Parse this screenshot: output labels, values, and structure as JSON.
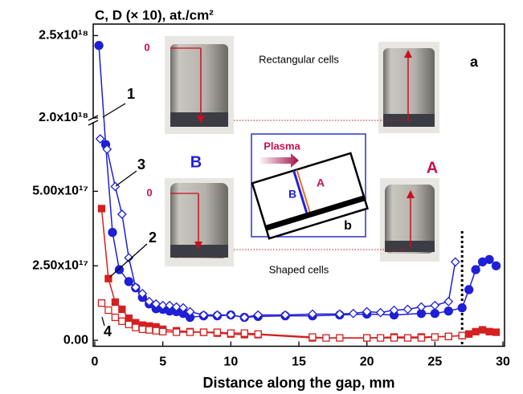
{
  "chart_data": {
    "type": "line",
    "title": "C, D (× 10), at./cm²",
    "x_label": "Distance along the gap, mm",
    "xlim": [
      0,
      30
    ],
    "xticks": [
      0,
      5,
      10,
      15,
      20,
      25,
      30
    ],
    "ylim": [
      -2e+16,
      2.57e+18
    ],
    "y_break": [
      7.3e+17,
      2e+18
    ],
    "yticks": [
      {
        "value": 0,
        "label": "0.00"
      },
      {
        "value": 2.5e+17,
        "label": "2.50x10¹⁷"
      },
      {
        "value": 5e+17,
        "label": "5.00x10¹⁷"
      },
      {
        "value": 2e+18,
        "label": "2.0x10¹⁸"
      },
      {
        "value": 2.5e+18,
        "label": "2.5x10¹⁸"
      }
    ],
    "vline_x": 27,
    "series": [
      {
        "name": "1",
        "color": "#1f1fd6",
        "marker": "circle",
        "filled": true,
        "x": [
          0.3,
          0.8,
          1.3,
          1.8,
          2.5,
          3,
          3.5,
          4,
          4.5,
          5,
          5.5,
          6,
          6.5,
          7,
          8,
          9,
          10,
          11,
          12,
          14,
          16,
          18,
          20,
          22,
          24,
          25,
          26,
          27,
          27.5,
          28,
          28.5,
          29,
          29.5
        ],
        "values": [
          2.44e+18,
          6.57e+17,
          3.62e+17,
          2.37e+17,
          1.97e+17,
          1.76e+17,
          1.44e+17,
          1.22e+17,
          1.06e+17,
          1.04e+17,
          9.8e+16,
          9.6e+16,
          9e+16,
          7.7e+16,
          8.2e+16,
          8.2e+16,
          8.5e+16,
          7.7e+16,
          8e+16,
          8.2e+16,
          8.2e+16,
          8.5e+16,
          8.8e+16,
          8.5e+16,
          9e+16,
          9e+16,
          9.8e+16,
          1.09e+17,
          1.7e+17,
          2.37e+17,
          2.63e+17,
          2.71e+17,
          2.5e+17
        ]
      },
      {
        "name": "3",
        "color": "#1f1fd6",
        "marker": "diamond",
        "filled": false,
        "x": [
          0.4,
          0.9,
          1.5,
          2,
          2.5,
          3,
          3.5,
          4,
          4.5,
          5,
          5.5,
          6,
          6.5,
          7,
          8,
          9,
          10,
          11,
          12,
          14,
          16,
          18,
          19,
          20,
          21,
          22,
          23,
          24,
          25,
          26,
          26.5
        ],
        "values": [
          6.76e+17,
          6.41e+17,
          5.16e+17,
          4.23e+17,
          2.77e+17,
          1.78e+17,
          1.57e+17,
          1.3e+17,
          1.22e+17,
          1.17e+17,
          1.17e+17,
          1.12e+17,
          1.09e+17,
          9.6e+16,
          8.5e+16,
          8.5e+16,
          8.5e+16,
          7.7e+16,
          8.5e+16,
          8.5e+16,
          8.8e+16,
          8.8e+16,
          9e+16,
          9.6e+16,
          9.3e+16,
          1.01e+17,
          1.04e+17,
          1.12e+17,
          1.17e+17,
          1.3e+17,
          2.63e+17
        ]
      },
      {
        "name": "2",
        "color": "#d42020",
        "marker": "square",
        "filled": true,
        "x": [
          0.5,
          1,
          1.5,
          2,
          2.5,
          3,
          3.5,
          4,
          4.5,
          5,
          6,
          7,
          8,
          9,
          10,
          11,
          12,
          16,
          20,
          22,
          24,
          26,
          27,
          27.5,
          28,
          28.5,
          29,
          29.5
        ],
        "values": [
          4.42e+17,
          2.07e+17,
          1.28e+17,
          1.04e+17,
          7.4e+16,
          5.9e+16,
          5.1e+16,
          4.8e+16,
          4.5e+16,
          3.7e+16,
          3.2e+16,
          2.9e+16,
          2.7e+16,
          2.4e+16,
          2.1e+16,
          1.9e+16,
          1.9e+16,
          8000000000000000.0,
          8000000000000000.0,
          1.1e+16,
          1.1e+16,
          1.3e+16,
          1.6e+16,
          2.1e+16,
          2.9e+16,
          3.5e+16,
          2.9e+16,
          2.7e+16
        ]
      },
      {
        "name": "4",
        "color": "#d42020",
        "marker": "square",
        "filled": false,
        "x": [
          0.5,
          1,
          1.5,
          2,
          2.5,
          3,
          3.5,
          4,
          4.5,
          5,
          6,
          7,
          8,
          9,
          10,
          11,
          12,
          16,
          17,
          18,
          20,
          21,
          22,
          23,
          24,
          25,
          26,
          27
        ],
        "values": [
          1.25e+17,
          1.01e+17,
          7.7e+16,
          6.4e+16,
          5.3e+16,
          4.3e+16,
          3.7e+16,
          3.5e+16,
          3.2e+16,
          2.9e+16,
          2.7e+16,
          2.7e+16,
          2.7e+16,
          2.7e+16,
          2.4e+16,
          2.4e+16,
          2.1e+16,
          1.1e+16,
          8000000000000000.0,
          8000000000000000.0,
          8000000000000000.0,
          8000000000000000.0,
          8000000000000000.0,
          8000000000000000.0,
          8000000000000000.0,
          1.1e+16,
          1.3e+16,
          1.6e+16
        ]
      }
    ],
    "annotations": [
      "a",
      "Rectangular cells",
      "Shaped cells",
      "B",
      "A",
      "0",
      "0",
      "Plasma",
      "b",
      "B",
      "A"
    ]
  }
}
